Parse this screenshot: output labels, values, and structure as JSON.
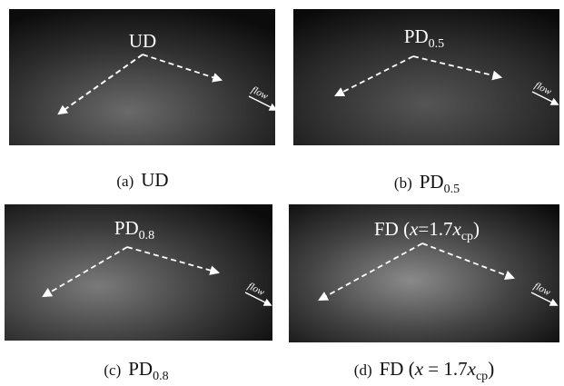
{
  "panels": [
    {
      "label": [
        "UD"
      ],
      "flow": "flow",
      "caption": {
        "letter": "(a)",
        "parts": [
          "UD"
        ]
      }
    },
    {
      "label": [
        "PD",
        "0.5"
      ],
      "flow": "flow",
      "caption": {
        "letter": "(b)",
        "parts": [
          "PD",
          "0.5"
        ]
      }
    },
    {
      "label": [
        "PD",
        "0.8"
      ],
      "flow": "flow",
      "caption": {
        "letter": "(c)",
        "parts": [
          "PD",
          "0.8"
        ]
      }
    },
    {
      "label": [
        "FD (",
        "x",
        "=1.7",
        "x",
        "cp",
        ")"
      ],
      "flow": "flow",
      "caption": {
        "letter": "(d)",
        "parts": [
          "FD (",
          "x",
          " = 1.7",
          "x",
          "cp",
          ")"
        ]
      }
    }
  ]
}
